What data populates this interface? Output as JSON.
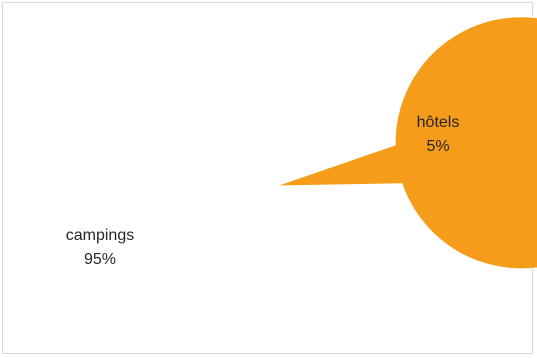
{
  "chart_data": {
    "type": "pie",
    "title": "",
    "slices": [
      {
        "label": "hôtels",
        "value": 5,
        "percent_label": "5%",
        "color": "#a5117a"
      },
      {
        "label": "campings",
        "value": 95,
        "percent_label": "95%",
        "color": "#f59c1a"
      }
    ],
    "legend": "none",
    "data_labels": "outside"
  }
}
